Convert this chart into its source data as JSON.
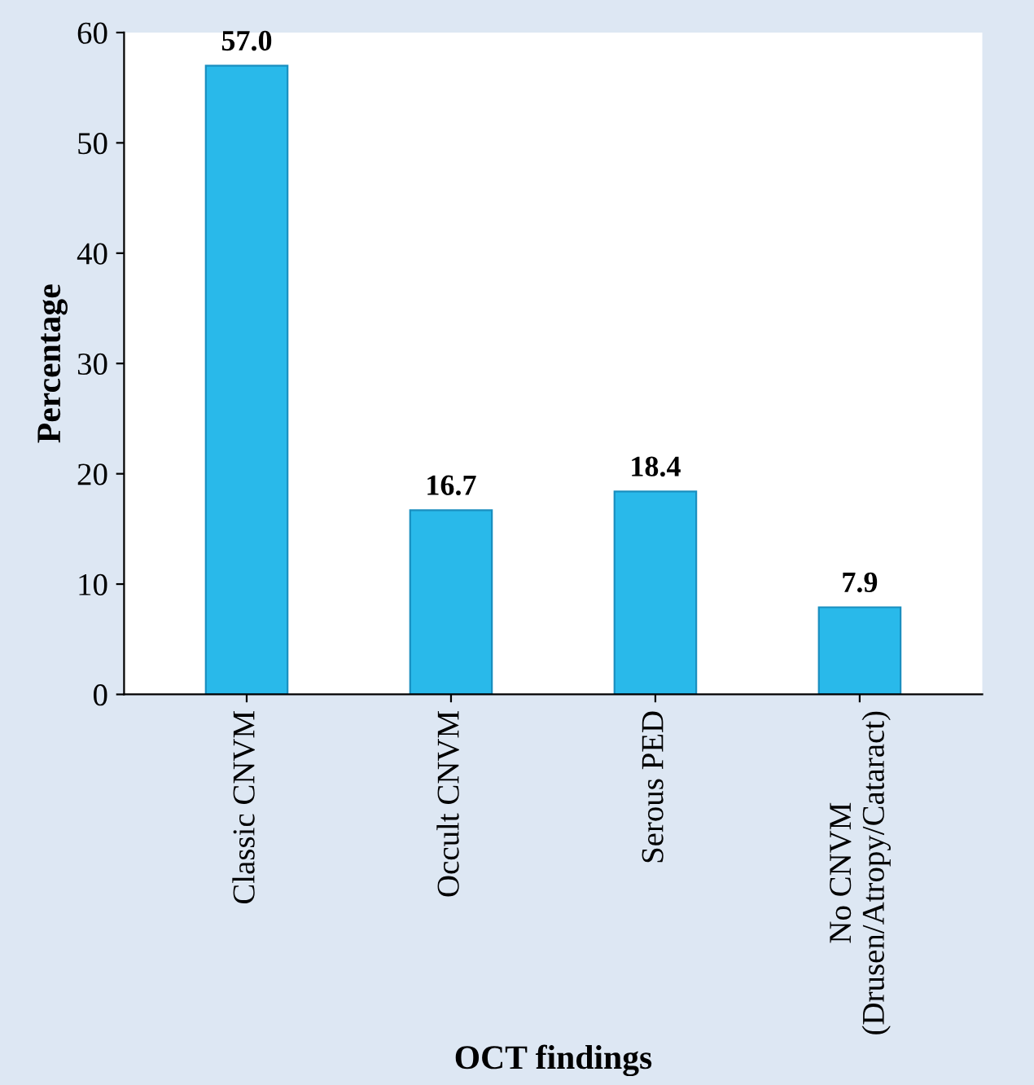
{
  "chart_data": {
    "type": "bar",
    "categories": [
      "Classic CNVM",
      "Occult CNVM",
      "Serous PED",
      "No CNVM\n(Drusen/Atropy/Cataract)"
    ],
    "values": [
      57.0,
      16.7,
      18.4,
      7.9
    ],
    "value_labels": [
      "57.0",
      "16.7",
      "18.4",
      "7.9"
    ],
    "color": "#29b9ea",
    "xlabel": "OCT findings",
    "ylabel": "Percentage",
    "ylim": [
      0,
      60
    ],
    "yticks": [
      0,
      10,
      20,
      30,
      40,
      50,
      60
    ],
    "grid": false,
    "legend": false
  }
}
